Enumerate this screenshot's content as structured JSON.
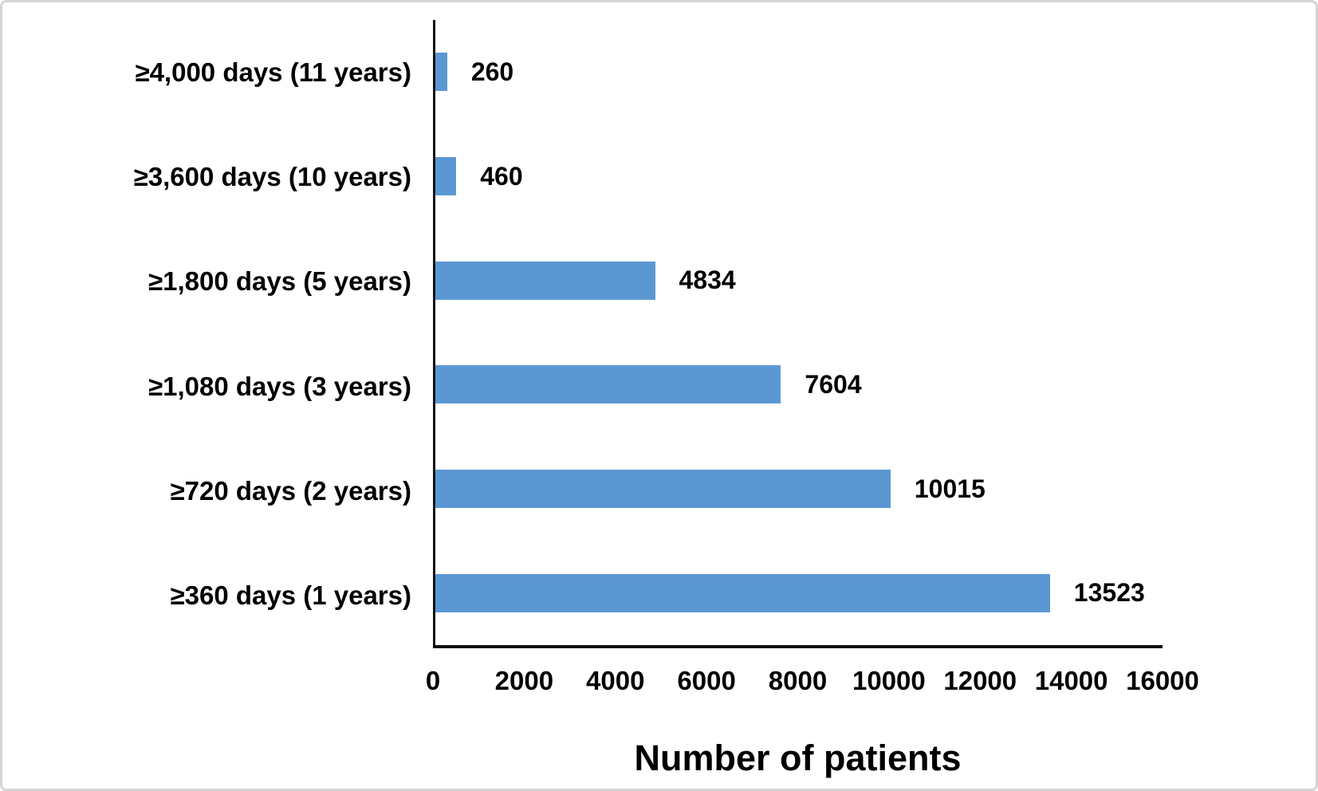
{
  "chart_data": {
    "type": "bar",
    "orientation": "horizontal",
    "title": "",
    "xlabel": "Number of patients",
    "ylabel": "",
    "xlim": [
      0,
      16000
    ],
    "grid": false,
    "legend_position": "none",
    "bar_color": "#5B97D3",
    "axis_color": "#111111",
    "categories": [
      "≥4,000 days (11 years)",
      "≥3,600 days (10 years)",
      "≥1,800 days (5 years)",
      "≥1,080 days (3 years)",
      "≥720 days (2 years)",
      "≥360 days (1 years)"
    ],
    "values": [
      260,
      460,
      4834,
      7604,
      10015,
      13523
    ],
    "x_tick_labels": [
      "0",
      "2000",
      "4000",
      "6000",
      "8000",
      "10000",
      "12000",
      "14000",
      "16000"
    ]
  }
}
